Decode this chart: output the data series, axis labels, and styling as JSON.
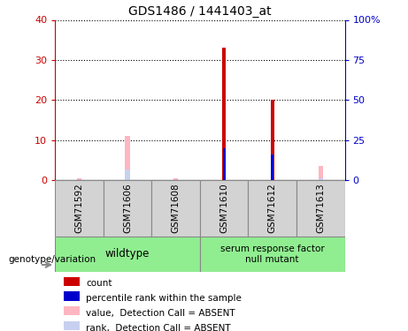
{
  "title": "GDS1486 / 1441403_at",
  "samples": [
    "GSM71592",
    "GSM71606",
    "GSM71608",
    "GSM71610",
    "GSM71612",
    "GSM71613"
  ],
  "count_values": [
    0,
    0,
    0,
    33,
    20,
    0
  ],
  "rank_values": [
    0,
    0,
    0,
    20,
    16,
    0
  ],
  "absent_value_values": [
    0.5,
    11,
    0.5,
    0,
    0,
    3.5
  ],
  "absent_rank_values": [
    0,
    7,
    0,
    0,
    0,
    1.5
  ],
  "absent_rank_small": [
    0.5,
    0,
    0,
    0,
    0,
    0.5
  ],
  "ylim_left": [
    0,
    40
  ],
  "ylim_right": [
    0,
    100
  ],
  "yticks_left": [
    0,
    10,
    20,
    30,
    40
  ],
  "yticks_right": [
    0,
    25,
    50,
    75,
    100
  ],
  "yticklabels_left": [
    "0",
    "10",
    "20",
    "30",
    "40"
  ],
  "yticklabels_right": [
    "0",
    "25",
    "50",
    "75",
    "100%"
  ],
  "color_count": "#cc0000",
  "color_rank": "#0000cc",
  "color_absent_value": "#ffb6c1",
  "color_absent_rank": "#c8d0f0",
  "group1_label": "wildtype",
  "group2_label": "serum response factor\nnull mutant",
  "group_box_color": "#90EE90",
  "sample_box_color": "#d3d3d3",
  "bar_width": 0.12,
  "absent_bar_width": 0.1
}
